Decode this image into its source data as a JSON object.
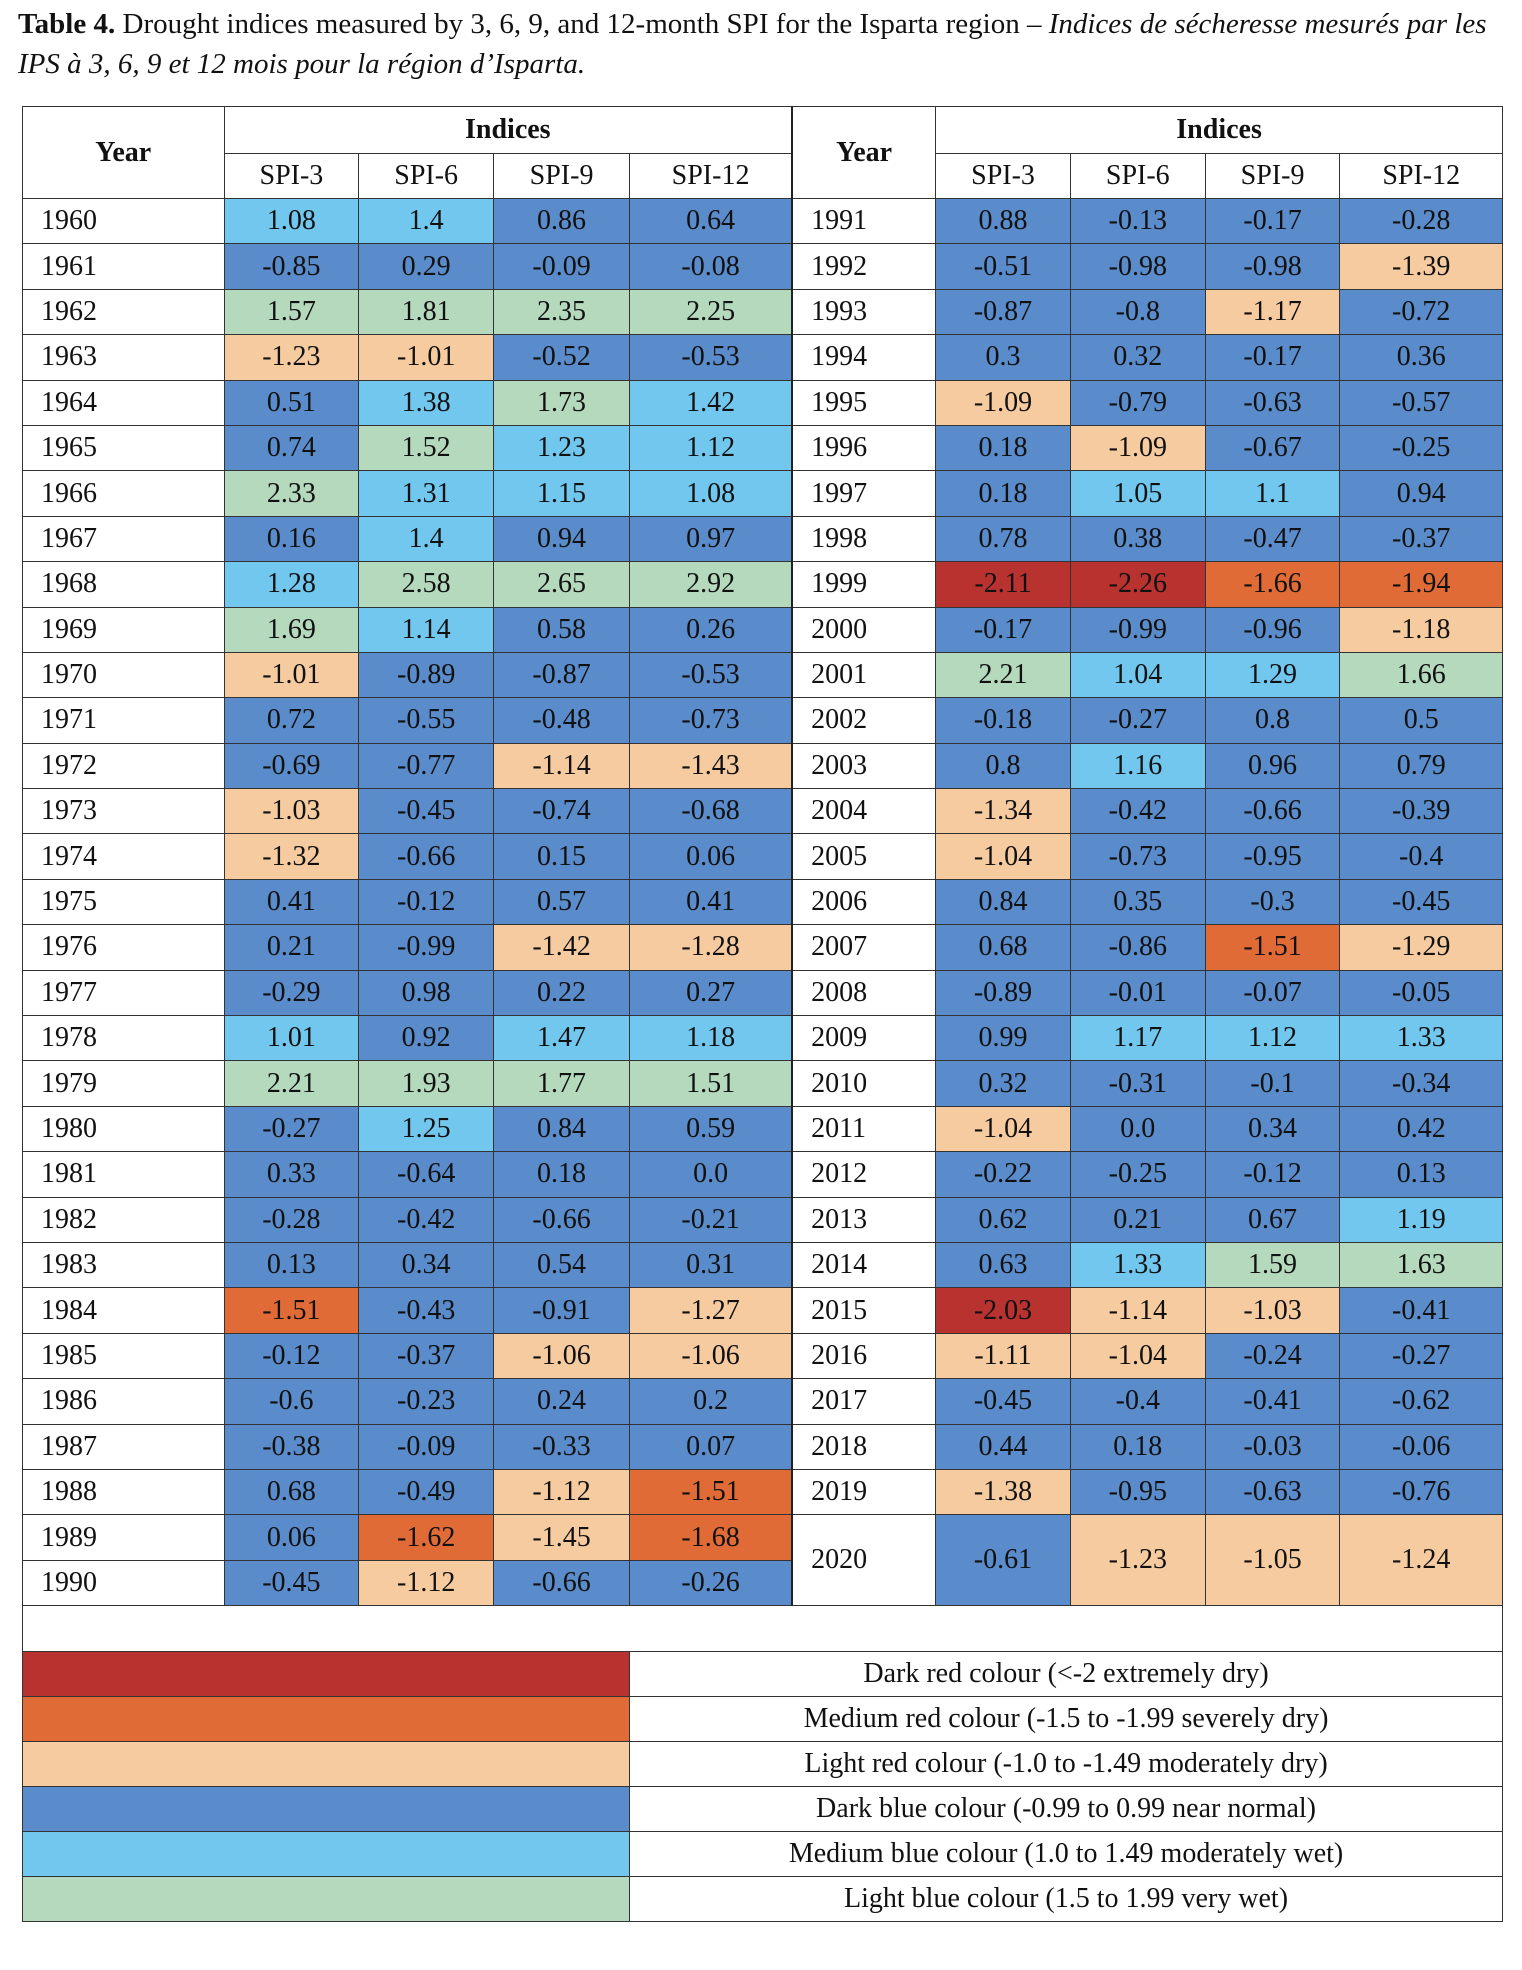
{
  "caption": {
    "label": "Table 4.",
    "text": " Drought indices measured by 3, 6, 9, and 12-month SPI for the Isparta region – ",
    "french": "Indices de sécheresse mesurés par les IPS à 3, 6, 9 et 12 mois pour la région d’Isparta."
  },
  "headers": {
    "year": "Year",
    "indices": "Indices",
    "spi": [
      "SPI-3",
      "SPI-6",
      "SPI-9",
      "SPI-12"
    ]
  },
  "colors": {
    "dark_red": "#b83230",
    "medium_red": "#e06b37",
    "light_red": "#f6cba0",
    "dark_blue": "#5a8bcb",
    "medium_blue": "#72c7ef",
    "light_blue": "#b5d9bd"
  },
  "left_rows": [
    {
      "year": "1960",
      "v": [
        "1.08",
        "1.4",
        "0.86",
        "0.64"
      ]
    },
    {
      "year": "1961",
      "v": [
        "-0.85",
        "0.29",
        "-0.09",
        "-0.08"
      ]
    },
    {
      "year": "1962",
      "v": [
        "1.57",
        "1.81",
        "2.35",
        "2.25"
      ]
    },
    {
      "year": "1963",
      "v": [
        "-1.23",
        "-1.01",
        "-0.52",
        "-0.53"
      ]
    },
    {
      "year": "1964",
      "v": [
        "0.51",
        "1.38",
        "1.73",
        "1.42"
      ]
    },
    {
      "year": "1965",
      "v": [
        "0.74",
        "1.52",
        "1.23",
        "1.12"
      ]
    },
    {
      "year": "1966",
      "v": [
        "2.33",
        "1.31",
        "1.15",
        "1.08"
      ]
    },
    {
      "year": "1967",
      "v": [
        "0.16",
        "1.4",
        "0.94",
        "0.97"
      ]
    },
    {
      "year": "1968",
      "v": [
        "1.28",
        "2.58",
        "2.65",
        "2.92"
      ]
    },
    {
      "year": "1969",
      "v": [
        "1.69",
        "1.14",
        "0.58",
        "0.26"
      ]
    },
    {
      "year": "1970",
      "v": [
        "-1.01",
        "-0.89",
        "-0.87",
        "-0.53"
      ]
    },
    {
      "year": "1971",
      "v": [
        "0.72",
        "-0.55",
        "-0.48",
        "-0.73"
      ]
    },
    {
      "year": "1972",
      "v": [
        "-0.69",
        "-0.77",
        "-1.14",
        "-1.43"
      ]
    },
    {
      "year": "1973",
      "v": [
        "-1.03",
        "-0.45",
        "-0.74",
        "-0.68"
      ]
    },
    {
      "year": "1974",
      "v": [
        "-1.32",
        "-0.66",
        "0.15",
        "0.06"
      ]
    },
    {
      "year": "1975",
      "v": [
        "0.41",
        "-0.12",
        "0.57",
        "0.41"
      ]
    },
    {
      "year": "1976",
      "v": [
        "0.21",
        "-0.99",
        "-1.42",
        "-1.28"
      ]
    },
    {
      "year": "1977",
      "v": [
        "-0.29",
        "0.98",
        "0.22",
        "0.27"
      ]
    },
    {
      "year": "1978",
      "v": [
        "1.01",
        "0.92",
        "1.47",
        "1.18"
      ]
    },
    {
      "year": "1979",
      "v": [
        "2.21",
        "1.93",
        "1.77",
        "1.51"
      ]
    },
    {
      "year": "1980",
      "v": [
        "-0.27",
        "1.25",
        "0.84",
        "0.59"
      ]
    },
    {
      "year": "1981",
      "v": [
        "0.33",
        "-0.64",
        "0.18",
        "0.0"
      ]
    },
    {
      "year": "1982",
      "v": [
        "-0.28",
        "-0.42",
        "-0.66",
        "-0.21"
      ]
    },
    {
      "year": "1983",
      "v": [
        "0.13",
        "0.34",
        "0.54",
        "0.31"
      ]
    },
    {
      "year": "1984",
      "v": [
        "-1.51",
        "-0.43",
        "-0.91",
        "-1.27"
      ]
    },
    {
      "year": "1985",
      "v": [
        "-0.12",
        "-0.37",
        "-1.06",
        "-1.06"
      ]
    },
    {
      "year": "1986",
      "v": [
        "-0.6",
        "-0.23",
        "0.24",
        "0.2"
      ]
    },
    {
      "year": "1987",
      "v": [
        "-0.38",
        "-0.09",
        "-0.33",
        "0.07"
      ]
    },
    {
      "year": "1988",
      "v": [
        "0.68",
        "-0.49",
        "-1.12",
        "-1.51"
      ]
    },
    {
      "year": "1989",
      "v": [
        "0.06",
        "-1.62",
        "-1.45",
        "-1.68"
      ]
    },
    {
      "year": "1990",
      "v": [
        "-0.45",
        "-1.12",
        "-0.66",
        "-0.26"
      ]
    }
  ],
  "right_rows": [
    {
      "year": "1991",
      "v": [
        "0.88",
        "-0.13",
        "-0.17",
        "-0.28"
      ]
    },
    {
      "year": "1992",
      "v": [
        "-0.51",
        "-0.98",
        "-0.98",
        "-1.39"
      ]
    },
    {
      "year": "1993",
      "v": [
        "-0.87",
        "-0.8",
        "-1.17",
        "-0.72"
      ]
    },
    {
      "year": "1994",
      "v": [
        "0.3",
        "0.32",
        "-0.17",
        "0.36"
      ]
    },
    {
      "year": "1995",
      "v": [
        "-1.09",
        "-0.79",
        "-0.63",
        "-0.57"
      ]
    },
    {
      "year": "1996",
      "v": [
        "0.18",
        "-1.09",
        "-0.67",
        "-0.25"
      ]
    },
    {
      "year": "1997",
      "v": [
        "0.18",
        "1.05",
        "1.1",
        "0.94"
      ]
    },
    {
      "year": "1998",
      "v": [
        "0.78",
        "0.38",
        "-0.47",
        "-0.37"
      ]
    },
    {
      "year": "1999",
      "v": [
        "-2.11",
        "-2.26",
        "-1.66",
        "-1.94"
      ]
    },
    {
      "year": "2000",
      "v": [
        "-0.17",
        "-0.99",
        "-0.96",
        "-1.18"
      ]
    },
    {
      "year": "2001",
      "v": [
        "2.21",
        "1.04",
        "1.29",
        "1.66"
      ]
    },
    {
      "year": "2002",
      "v": [
        "-0.18",
        "-0.27",
        "0.8",
        "0.5"
      ]
    },
    {
      "year": "2003",
      "v": [
        "0.8",
        "1.16",
        "0.96",
        "0.79"
      ]
    },
    {
      "year": "2004",
      "v": [
        "-1.34",
        "-0.42",
        "-0.66",
        "-0.39"
      ]
    },
    {
      "year": "2005",
      "v": [
        "-1.04",
        "-0.73",
        "-0.95",
        "-0.4"
      ]
    },
    {
      "year": "2006",
      "v": [
        "0.84",
        "0.35",
        "-0.3",
        "-0.45"
      ]
    },
    {
      "year": "2007",
      "v": [
        "0.68",
        "-0.86",
        "-1.51",
        "-1.29"
      ]
    },
    {
      "year": "2008",
      "v": [
        "-0.89",
        "-0.01",
        "-0.07",
        "-0.05"
      ]
    },
    {
      "year": "2009",
      "v": [
        "0.99",
        "1.17",
        "1.12",
        "1.33"
      ]
    },
    {
      "year": "2010",
      "v": [
        "0.32",
        "-0.31",
        "-0.1",
        "-0.34"
      ]
    },
    {
      "year": "2011",
      "v": [
        "-1.04",
        "0.0",
        "0.34",
        "0.42"
      ]
    },
    {
      "year": "2012",
      "v": [
        "-0.22",
        "-0.25",
        "-0.12",
        "0.13"
      ]
    },
    {
      "year": "2013",
      "v": [
        "0.62",
        "0.21",
        "0.67",
        "1.19"
      ]
    },
    {
      "year": "2014",
      "v": [
        "0.63",
        "1.33",
        "1.59",
        "1.63"
      ]
    },
    {
      "year": "2015",
      "v": [
        "-2.03",
        "-1.14",
        "-1.03",
        "-0.41"
      ]
    },
    {
      "year": "2016",
      "v": [
        "-1.11",
        "-1.04",
        "-0.24",
        "-0.27"
      ]
    },
    {
      "year": "2017",
      "v": [
        "-0.45",
        "-0.4",
        "-0.41",
        "-0.62"
      ]
    },
    {
      "year": "2018",
      "v": [
        "0.44",
        "0.18",
        "-0.03",
        "-0.06"
      ]
    },
    {
      "year": "2019",
      "v": [
        "-1.38",
        "-0.95",
        "-0.63",
        "-0.76"
      ]
    },
    {
      "year": "2020",
      "v": [
        "-0.61",
        "-1.23",
        "-1.05",
        "-1.24"
      ]
    }
  ],
  "legend": [
    {
      "color": "#b83230",
      "label": "Dark red colour (<-2 extremely dry)"
    },
    {
      "color": "#e06b37",
      "label": "Medium red colour (-1.5 to -1.99 severely dry)"
    },
    {
      "color": "#f6cba0",
      "label": "Light red colour (-1.0 to -1.49 moderately dry)"
    },
    {
      "color": "#5a8bcb",
      "label": "Dark blue colour (-0.99 to 0.99 near normal)"
    },
    {
      "color": "#72c7ef",
      "label": "Medium blue colour (1.0 to 1.49 moderately wet)"
    },
    {
      "color": "#b5d9bd",
      "label": "Light blue colour (1.5 to 1.99 very wet)"
    }
  ]
}
